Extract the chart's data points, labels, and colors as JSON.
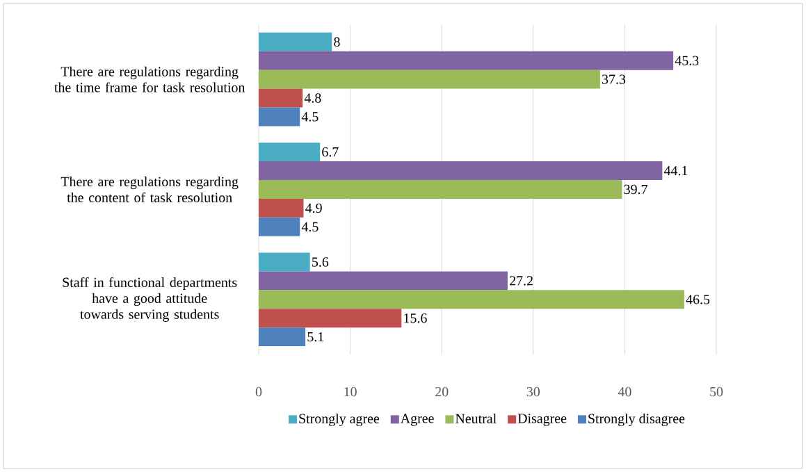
{
  "chart_data": {
    "type": "bar",
    "orientation": "horizontal",
    "categories": [
      "There are regulations regarding the time frame for task resolution",
      "There are regulations regarding the content of task resolution",
      "Staff in functional departments have a good attitude towards serving students"
    ],
    "series": [
      {
        "name": "Strongly agree",
        "color": "#4bacc6",
        "values": [
          8,
          6.7,
          5.6
        ]
      },
      {
        "name": "Agree",
        "color": "#8064a2",
        "values": [
          45.3,
          44.1,
          27.2
        ]
      },
      {
        "name": "Neutral",
        "color": "#9bbb59",
        "values": [
          37.3,
          39.7,
          46.5
        ]
      },
      {
        "name": "Disagree",
        "color": "#c0504d",
        "values": [
          4.8,
          4.9,
          15.6
        ]
      },
      {
        "name": "Strongly disagree",
        "color": "#4f81bd",
        "values": [
          4.5,
          4.5,
          5.1
        ]
      }
    ],
    "xlim": [
      0,
      50
    ],
    "xticks": [
      0,
      10,
      20,
      30,
      40,
      50
    ],
    "grid": "x",
    "legend": "bottom",
    "data_labels": true
  }
}
